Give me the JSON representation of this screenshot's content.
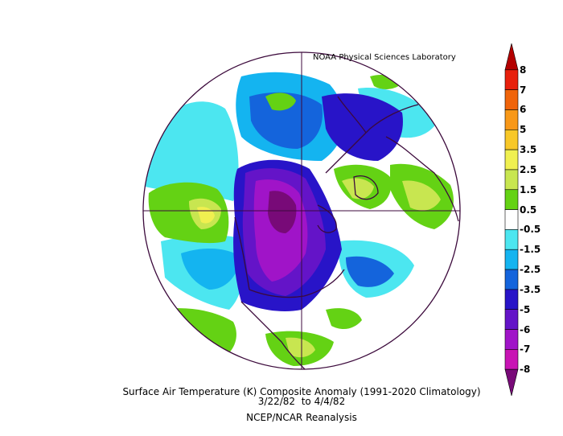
{
  "credit": "NOAA Physical Sciences Laboratory",
  "caption": {
    "line1": "Surface Air Temperature (K) Composite Anomaly (1991-2020 Climatology)",
    "date_start": "3/22/82",
    "date_sep": "to",
    "date_end": "4/4/82",
    "line3": "NCEP/NCAR Reanalysis"
  },
  "colorbar": {
    "labels": [
      "8",
      "7",
      "6",
      "5",
      "3.5",
      "2.5",
      "1.5",
      "0.5",
      "-0.5",
      "-1.5",
      "-2.5",
      "-3.5",
      "-5",
      "-6",
      "-7",
      "-8"
    ],
    "colors": [
      "#b40000",
      "#e8200c",
      "#f0640a",
      "#f89818",
      "#f8c828",
      "#f0f050",
      "#c8e650",
      "#64d214",
      "#ffffff",
      "#4ce6f0",
      "#14b4f0",
      "#1464dc",
      "#2814c8",
      "#6414c8",
      "#a014c8",
      "#c814b4",
      "#780a78"
    ]
  },
  "map_colors": {
    "positive_weak": "#64d214",
    "positive_mid": "#c8e650",
    "positive_strong": "#f0f050",
    "negative_weak": "#4ce6f0",
    "negative_mid": "#14b4f0",
    "negative_strong": "#1464dc",
    "negative_stronger": "#2814c8",
    "negative_extreme": "#6414c8",
    "negative_max": "#a014c8",
    "coastline": "#3c0a3c"
  }
}
